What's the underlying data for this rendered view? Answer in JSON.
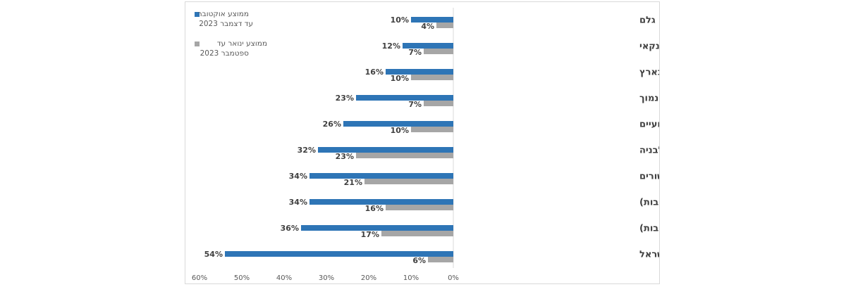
{
  "chart_data": {
    "type": "bar",
    "orientation": "horizontal",
    "categories": [
      "מחסור בציוד וחומרי גלם",
      "קשיים בהשגת אשראי חוץ בנקאי",
      "קשיים בהשגת אשראי בנקאי בארץ",
      "ביקוש נמוך",
      "מחסור בעובדים בלתי מקצועיים",
      "מחסור בקרקע זמינה לבניה",
      "עיכובים בקבלת היתרים/אישורים",
      "מחסור בעובדים מקצועיים (בעבודות לא רטובות)",
      "מחסור בעובדים מקצועיים (בעבודות רטובות)",
      "המצב הביטחוני בישראל"
    ],
    "series": [
      {
        "name_line1": "ממוצע אוקטובר",
        "name_line2": "עד דצמבר 2023",
        "color": "#2e75b6",
        "values": [
          10,
          12,
          16,
          23,
          26,
          32,
          34,
          34,
          36,
          54
        ],
        "value_labels": [
          "10%",
          "12%",
          "16%",
          "23%",
          "26%",
          "32%",
          "34%",
          "34%",
          "36%",
          "54%"
        ]
      },
      {
        "name_line1": "ממוצע ינואר עד",
        "name_line2": "ספטמבר 2023",
        "color": "#a6a6a6",
        "values": [
          4,
          7,
          10,
          7,
          10,
          23,
          21,
          16,
          17,
          6
        ],
        "value_labels": [
          "4%",
          "7%",
          "10%",
          "7%",
          "10%",
          "23%",
          "21%",
          "16%",
          "17%",
          "6%"
        ]
      }
    ],
    "xlim": [
      0,
      60
    ],
    "x_ticks": [
      0,
      10,
      20,
      30,
      40,
      50,
      60
    ],
    "x_tick_labels": [
      "0%",
      "10%",
      "20%",
      "30%",
      "40%",
      "50%",
      "60%"
    ],
    "x_direction": "reversed",
    "grid": false,
    "legend_position": "top-left"
  }
}
